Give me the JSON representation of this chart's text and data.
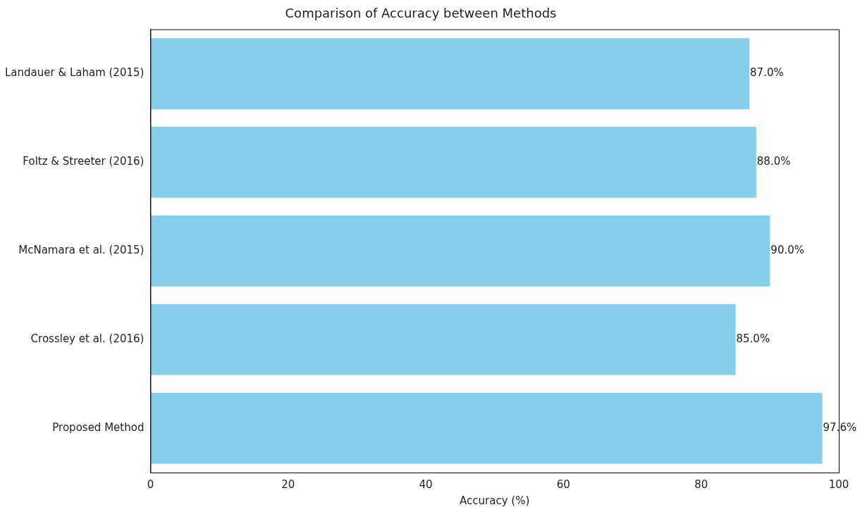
{
  "chart_data": {
    "type": "bar",
    "orientation": "horizontal",
    "title": "Comparison of Accuracy between Methods",
    "xlabel": "Accuracy (%)",
    "categories": [
      "Landauer & Laham (2015)",
      "Foltz & Streeter (2016)",
      "McNamara et al. (2015)",
      "Crossley et al. (2016)",
      "Proposed Method"
    ],
    "values": [
      87.0,
      88.0,
      90.0,
      85.0,
      97.6
    ],
    "value_labels": [
      "87.0%",
      "88.0%",
      "90.0%",
      "85.0%",
      "97.6%"
    ],
    "color": "#87ceeb",
    "xlim": [
      0,
      100
    ],
    "xticks": [
      0,
      20,
      40,
      60,
      80,
      100
    ]
  }
}
